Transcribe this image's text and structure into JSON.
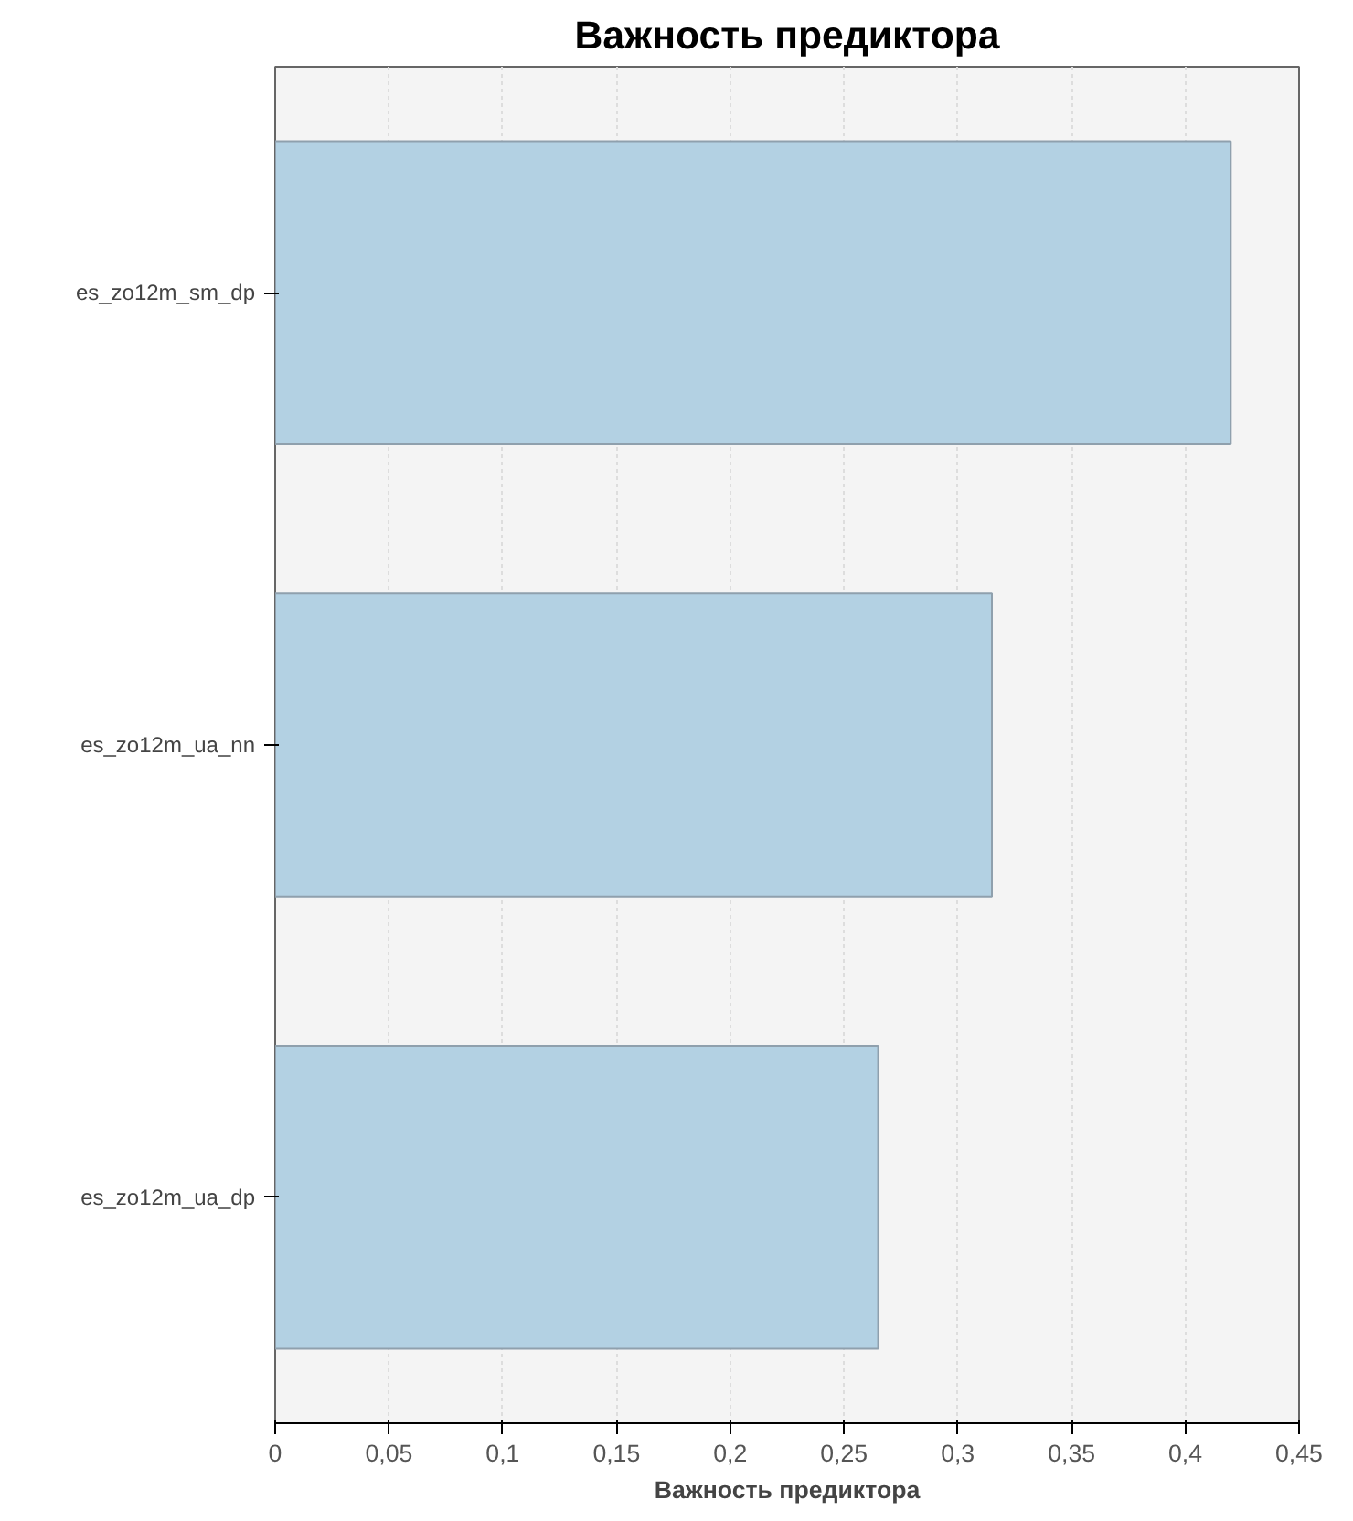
{
  "chart_data": {
    "type": "bar",
    "orientation": "horizontal",
    "title": "Важность предиктора",
    "xlabel": "Важность предиктора",
    "categories": [
      "es_zo12m_sm_dp",
      "es_zo12m_ua_nn",
      "es_zo12m_ua_dp"
    ],
    "values": [
      0.42,
      0.315,
      0.265
    ],
    "color": "#b3d1e3",
    "xlim": [
      0,
      0.45
    ],
    "xticks": [
      0,
      {
        "value": 0.05,
        "label": "0,05"
      },
      {
        "value": 0.1,
        "label": "0,1"
      },
      {
        "value": 0.15,
        "label": "0,15"
      },
      {
        "value": 0.2,
        "label": "0,2"
      },
      {
        "value": 0.25,
        "label": "0,25"
      },
      {
        "value": 0.3,
        "label": "0,3"
      },
      {
        "value": 0.35,
        "label": "0,35"
      },
      {
        "value": 0.4,
        "label": "0,4"
      },
      {
        "value": 0.45,
        "label": "0,45"
      }
    ],
    "grid": "x"
  }
}
